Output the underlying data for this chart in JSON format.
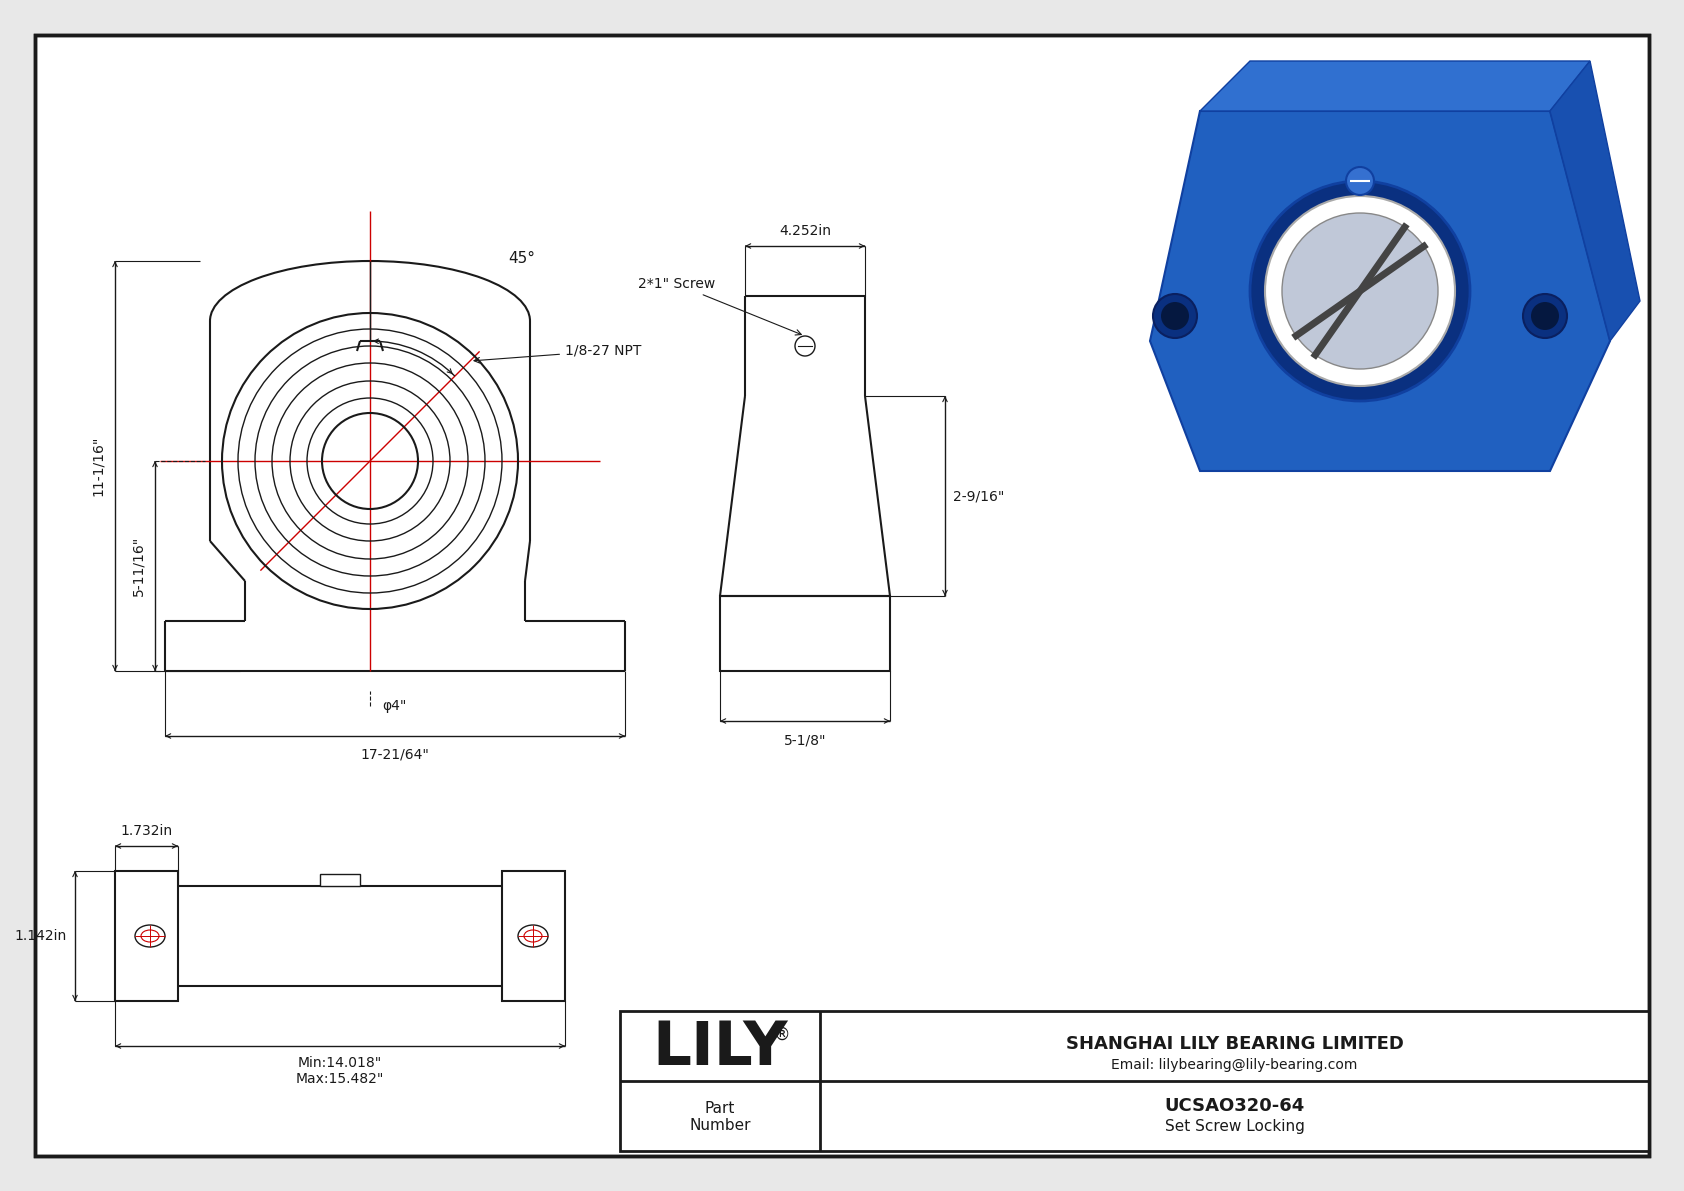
{
  "bg_color": "#e8e8e8",
  "drawing_bg": "#ffffff",
  "line_color": "#1a1a1a",
  "red_line_color": "#cc0000",
  "dim_45": "45°",
  "dim_npt": "1/8-27 NPT",
  "dim_width_top": "4.252in",
  "dim_screw": "2*1\" Screw",
  "dim_h1": "11-1/16\"",
  "dim_h2": "5-11/16\"",
  "dim_bore": "φ4\"",
  "dim_length": "17-21/64\"",
  "dim_side_h": "2-9/16\"",
  "dim_side_w": "5-1/8\"",
  "dim_top_w": "1.732in",
  "dim_top_h": "1.142in",
  "dim_bot_len1": "Min:14.018\"",
  "dim_bot_len2": "Max:15.482\"",
  "title_company": "SHANGHAI LILY BEARING LIMITED",
  "title_email": "Email: lilybearing@lily-bearing.com",
  "part_label": "Part\nNumber",
  "part_number": "UCSAO320-64",
  "part_desc": "Set Screw Locking",
  "lily_text": "LILY",
  "lily_reg": "®"
}
